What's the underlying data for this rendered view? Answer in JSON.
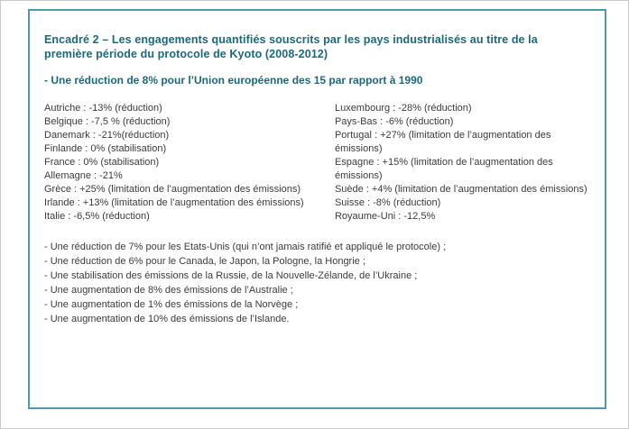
{
  "box": {
    "title_label": "Encadré 2",
    "title_separator": " – ",
    "title_text": "Les engagements quantifiés souscrits par les pays industrialisés au titre de la première période du protocole de Kyoto (2008-2012)",
    "subtitle": "- Une réduction de 8% pour l’Union européenne des 15 par rapport à 1990",
    "countries_left": [
      "Autriche : -13% (réduction)",
      "Belgique : -7,5 % (réduction)",
      "Danemark : -21%(réduction)",
      "Finlande : 0% (stabilisation)",
      "France : 0% (stabilisation)",
      "Allemagne : -21%",
      "Grèce : +25% (limitation de l’augmentation des émissions)",
      "Irlande : +13% (limitation de l’augmentation des émissions)",
      "Italie : -6,5% (réduction)"
    ],
    "countries_right": [
      "Luxembourg : -28% (réduction)",
      "Pays-Bas : -6% (réduction)",
      "Portugal : +27% (limitation de l’augmentation des émissions)",
      "Espagne : +15% (limitation de l’augmentation des émissions)",
      "Suède : +4% (limitation de l’augmentation des émissions)",
      "Suisse : -8% (réduction)",
      "Royaume-Uni : -12,5%"
    ],
    "notes": [
      "- Une réduction de 7% pour les Etats-Unis (qui n’ont jamais ratifié et appliqué le protocole) ;",
      "- Une réduction de 6% pour le Canada, le Japon, la Pologne, la Hongrie ;",
      "- Une stabilisation des émissions de la Russie, de la Nouvelle-Zélande, de l’Ukraine ;",
      "- Une augmentation de 8% des émissions de l’Australie ;",
      "- Une augmentation de 1% des émissions de la Norvège ;",
      "- Une augmentation de 10% des émissions de l’Islande."
    ],
    "colors": {
      "border": "#4d9aaa",
      "title": "#1a6a7c",
      "body": "#3b3b3b"
    }
  }
}
